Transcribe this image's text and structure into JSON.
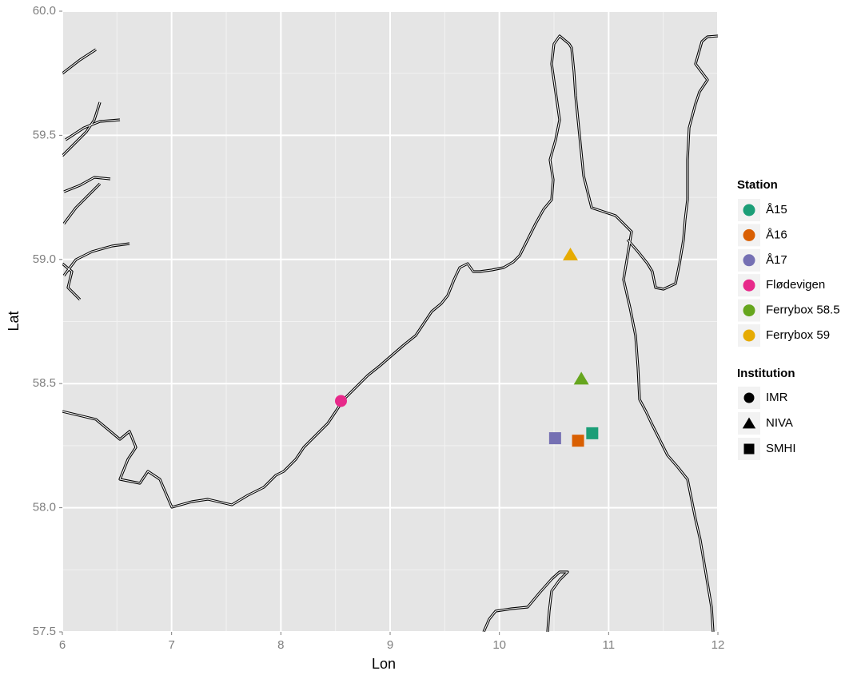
{
  "chart_data": {
    "type": "scatter",
    "x_label": "Lon",
    "y_label": "Lat",
    "xlim": [
      6,
      12
    ],
    "ylim": [
      57.5,
      60
    ],
    "xticks": [
      6,
      7,
      8,
      9,
      10,
      11,
      12
    ],
    "yticks": [
      57.5,
      {
        "value": 58,
        "label": "58.0"
      },
      58.5,
      {
        "value": 59,
        "label": "59.0"
      },
      59.5,
      {
        "value": 60,
        "label": "60.0"
      }
    ],
    "grid": true,
    "legend_title": "Station",
    "shape_legend_title": "Institution",
    "institutions": [
      {
        "name": "IMR",
        "shape": "circle"
      },
      {
        "name": "NIVA",
        "shape": "triangle"
      },
      {
        "name": "SMHI",
        "shape": "square"
      }
    ],
    "series": [
      {
        "name": "Å15",
        "color": "#1b9e77",
        "shape": "square",
        "x": [
          10.85
        ],
        "values": [
          58.3
        ]
      },
      {
        "name": "Å16",
        "color": "#d95f02",
        "shape": "square",
        "x": [
          10.72
        ],
        "values": [
          58.27
        ]
      },
      {
        "name": "Å17",
        "color": "#7570b3",
        "shape": "square",
        "x": [
          10.51
        ],
        "values": [
          58.28
        ]
      },
      {
        "name": "Flødevigen",
        "color": "#e7298a",
        "shape": "circle",
        "x": [
          8.55
        ],
        "values": [
          58.43
        ]
      },
      {
        "name": "Ferrybox 58.5",
        "color": "#66a61e",
        "shape": "triangle",
        "x": [
          10.75
        ],
        "values": [
          58.52
        ]
      },
      {
        "name": "Ferrybox 59",
        "color": "#e6ab02",
        "shape": "triangle",
        "x": [
          10.65
        ],
        "values": [
          59.02
        ]
      }
    ]
  }
}
